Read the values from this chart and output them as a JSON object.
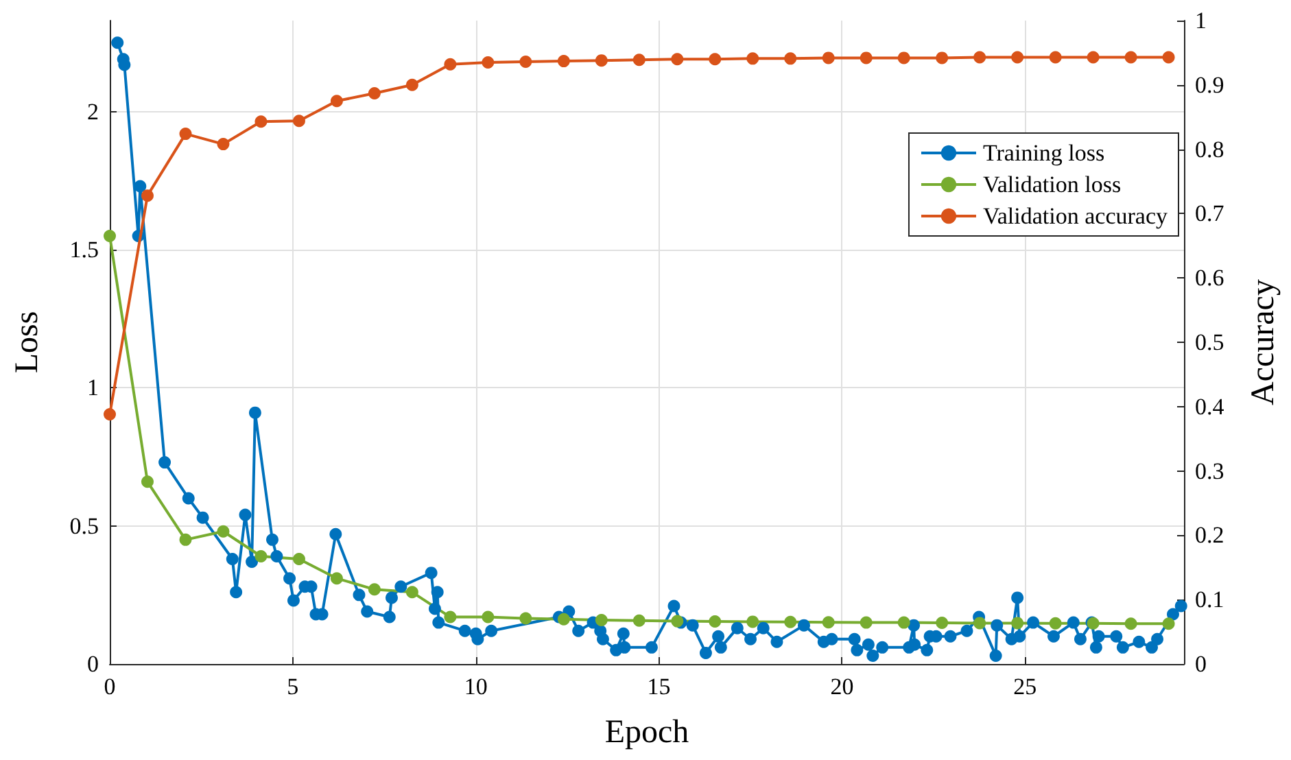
{
  "chart_data": {
    "type": "line",
    "xlabel": "Epoch",
    "ylabel": "Loss",
    "y2label": "Accuracy",
    "xlim": [
      0,
      29.34
    ],
    "xticks": [
      0,
      5,
      10,
      15,
      20,
      25
    ],
    "ylim": [
      0,
      2.33
    ],
    "yticks": [
      0,
      0.5,
      1,
      1.5,
      2
    ],
    "y2lim": [
      0,
      1
    ],
    "y2ticks": [
      0,
      0.1,
      0.2,
      0.3,
      0.4,
      0.5,
      0.6,
      0.7,
      0.8,
      0.9,
      1
    ],
    "grid": true,
    "legend": "top right",
    "marker": "circle",
    "line_style": "solid",
    "series": [
      {
        "name": "Training loss",
        "color": "#0072bd",
        "x": [
          0.21,
          0.37,
          0.4,
          0.78,
          0.83,
          1.5,
          2.15,
          2.54,
          3.35,
          3.45,
          3.7,
          3.88,
          3.97,
          4.44,
          4.56,
          4.91,
          5.02,
          5.33,
          5.5,
          5.63,
          5.8,
          6.17,
          6.81,
          7.03,
          7.64,
          7.7,
          7.95,
          8.78,
          8.88,
          8.95,
          8.98,
          9.7,
          10.0,
          10.05,
          10.42,
          12.27,
          12.54,
          12.8,
          13.2,
          13.4,
          13.47,
          13.83,
          14.03,
          14.06,
          14.8,
          15.41,
          15.6,
          15.92,
          16.28,
          16.62,
          16.69,
          17.14,
          17.5,
          17.85,
          18.22,
          18.96,
          19.5,
          19.72,
          20.34,
          20.41,
          20.72,
          20.84,
          21.1,
          21.83,
          21.96,
          21.98,
          22.32,
          22.4,
          22.57,
          22.96,
          23.41,
          23.74,
          24.2,
          24.23,
          24.63,
          24.79,
          24.85,
          25.22,
          25.78,
          26.32,
          26.51,
          26.82,
          26.94,
          27.01,
          27.49,
          27.67,
          28.11,
          28.46,
          28.61,
          29.04,
          29.26
        ],
        "values": [
          2.25,
          2.19,
          2.17,
          1.55,
          1.73,
          0.73,
          0.6,
          0.53,
          0.38,
          0.26,
          0.54,
          0.37,
          0.91,
          0.45,
          0.39,
          0.31,
          0.23,
          0.28,
          0.28,
          0.18,
          0.18,
          0.47,
          0.25,
          0.19,
          0.17,
          0.24,
          0.28,
          0.33,
          0.2,
          0.26,
          0.15,
          0.12,
          0.11,
          0.09,
          0.12,
          0.17,
          0.19,
          0.12,
          0.15,
          0.12,
          0.09,
          0.05,
          0.11,
          0.06,
          0.06,
          0.21,
          0.15,
          0.14,
          0.04,
          0.1,
          0.06,
          0.13,
          0.09,
          0.13,
          0.08,
          0.14,
          0.08,
          0.09,
          0.09,
          0.05,
          0.07,
          0.03,
          0.06,
          0.06,
          0.14,
          0.07,
          0.05,
          0.1,
          0.1,
          0.1,
          0.12,
          0.17,
          0.03,
          0.14,
          0.09,
          0.24,
          0.1,
          0.15,
          0.1,
          0.15,
          0.09,
          0.15,
          0.06,
          0.1,
          0.1,
          0.06,
          0.08,
          0.06,
          0.09,
          0.18,
          0.21
        ]
      },
      {
        "name": "Validation loss",
        "color": "#77ac30",
        "x": [
          0,
          1.03,
          2.07,
          3.1,
          4.13,
          5.17,
          6.2,
          7.23,
          8.26,
          9.3,
          10.33,
          11.36,
          12.4,
          13.43,
          14.46,
          15.5,
          16.53,
          17.56,
          18.59,
          19.63,
          20.66,
          21.69,
          22.73,
          23.76,
          24.79,
          25.83,
          26.86,
          27.89,
          28.92
        ],
        "values": [
          1.55,
          0.66,
          0.45,
          0.48,
          0.39,
          0.38,
          0.31,
          0.27,
          0.26,
          0.17,
          0.17,
          0.165,
          0.162,
          0.159,
          0.157,
          0.155,
          0.154,
          0.153,
          0.152,
          0.151,
          0.15,
          0.15,
          0.149,
          0.148,
          0.148,
          0.147,
          0.147,
          0.146,
          0.146
        ]
      },
      {
        "name": "Validation accuracy",
        "color": "#d95319",
        "axis": "y2",
        "x": [
          0,
          1.03,
          2.07,
          3.1,
          4.13,
          5.17,
          6.2,
          7.23,
          8.26,
          9.3,
          10.33,
          11.36,
          12.4,
          13.43,
          14.46,
          15.5,
          16.53,
          17.56,
          18.59,
          19.63,
          20.66,
          21.69,
          22.73,
          23.76,
          24.79,
          25.83,
          26.86,
          27.89,
          28.92
        ],
        "values": [
          0.388,
          0.728,
          0.824,
          0.808,
          0.843,
          0.844,
          0.875,
          0.887,
          0.9,
          0.932,
          0.935,
          0.936,
          0.937,
          0.938,
          0.939,
          0.94,
          0.94,
          0.941,
          0.941,
          0.942,
          0.942,
          0.942,
          0.942,
          0.943,
          0.943,
          0.943,
          0.943,
          0.943,
          0.943
        ]
      }
    ]
  }
}
